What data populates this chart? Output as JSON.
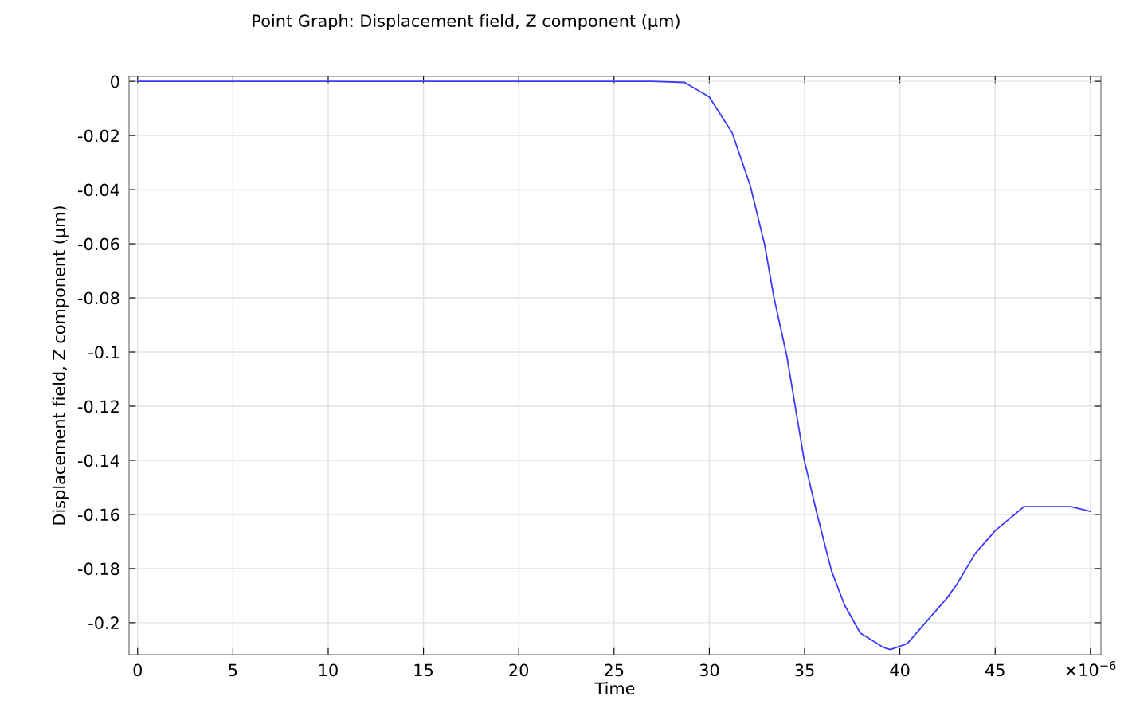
{
  "chart_data": {
    "type": "line",
    "title": "Point Graph: Displacement field, Z component (µm)",
    "xlabel": "Time",
    "ylabel": "Displacement field, Z component (µm)",
    "series": [
      {
        "color": "#3b3bff",
        "x": [
          0,
          5,
          10,
          15,
          20,
          25,
          27,
          28.7,
          30.0,
          31.2,
          32.15,
          32.9,
          33.39,
          34.08,
          34.97,
          35.66,
          36.41,
          37.1,
          37.92,
          39.16,
          39.5,
          40.39,
          41.35,
          42.45,
          43.0,
          43.96,
          44.99,
          46.51,
          48.98,
          50.0
        ],
        "values": [
          0,
          0,
          0,
          0,
          0,
          0,
          0,
          -0.0004,
          -0.0058,
          -0.019,
          -0.0386,
          -0.0602,
          -0.0798,
          -0.102,
          -0.1396,
          -0.16,
          -0.1808,
          -0.1935,
          -0.2038,
          -0.2092,
          -0.2099,
          -0.2077,
          -0.1999,
          -0.1911,
          -0.1857,
          -0.1744,
          -0.1661,
          -0.1571,
          -0.1571,
          -0.1589
        ]
      }
    ],
    "xlim": [
      -0.45,
      50.55
    ],
    "ylim": [
      -0.2118,
      0.0018
    ],
    "xticks": [
      0,
      5,
      10,
      15,
      20,
      25,
      30,
      35,
      40,
      45,
      {
        "value": 50,
        "label": "×10$^{−6}$"
      }
    ],
    "yticks": [
      {
        "value": 0,
        "label": "0"
      },
      {
        "value": -0.02,
        "label": "-0.02"
      },
      {
        "value": -0.04,
        "label": "-0.04"
      },
      {
        "value": -0.06,
        "label": "-0.06"
      },
      {
        "value": -0.08,
        "label": "-0.08"
      },
      {
        "value": -0.1,
        "label": "-0.1"
      },
      {
        "value": -0.12,
        "label": "-0.12"
      },
      {
        "value": -0.14,
        "label": "-0.14"
      },
      {
        "value": -0.16,
        "label": "-0.16"
      },
      {
        "value": -0.18,
        "label": "-0.18"
      },
      {
        "value": -0.2,
        "label": "-0.2"
      }
    ],
    "grid": true,
    "marker": "none",
    "line_style": "solid"
  }
}
